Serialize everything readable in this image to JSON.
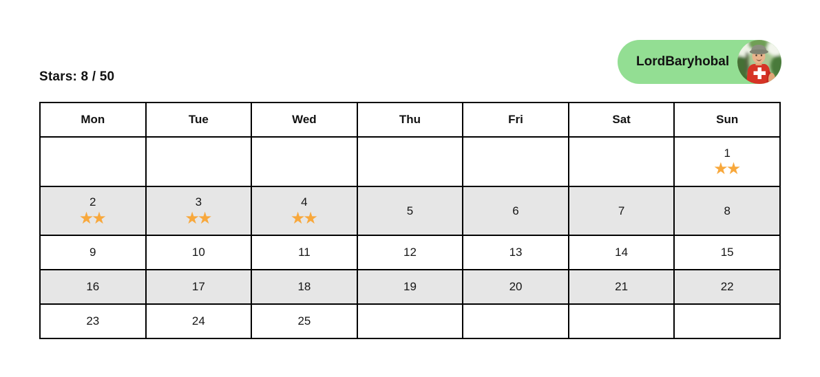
{
  "header": {
    "stars_label": "Stars: 8 / 50",
    "user": {
      "name": "LordBaryhobal",
      "avatar_icon": "child-photo-avatar"
    }
  },
  "colors": {
    "pill_green": "#93DE93",
    "star_orange": "#F8A83C",
    "alt_row_gray": "#E6E6E6",
    "border_black": "#000000",
    "shirt_red": "#D63426"
  },
  "calendar": {
    "day_headers": [
      "Mon",
      "Tue",
      "Wed",
      "Thu",
      "Fri",
      "Sat",
      "Sun"
    ],
    "star_glyph": "★",
    "rows": [
      [
        {
          "day": "",
          "stars": 0
        },
        {
          "day": "",
          "stars": 0
        },
        {
          "day": "",
          "stars": 0
        },
        {
          "day": "",
          "stars": 0
        },
        {
          "day": "",
          "stars": 0
        },
        {
          "day": "",
          "stars": 0
        },
        {
          "day": "1",
          "stars": 2
        }
      ],
      [
        {
          "day": "2",
          "stars": 2
        },
        {
          "day": "3",
          "stars": 2
        },
        {
          "day": "4",
          "stars": 2
        },
        {
          "day": "5",
          "stars": 0
        },
        {
          "day": "6",
          "stars": 0
        },
        {
          "day": "7",
          "stars": 0
        },
        {
          "day": "8",
          "stars": 0
        }
      ],
      [
        {
          "day": "9",
          "stars": 0
        },
        {
          "day": "10",
          "stars": 0
        },
        {
          "day": "11",
          "stars": 0
        },
        {
          "day": "12",
          "stars": 0
        },
        {
          "day": "13",
          "stars": 0
        },
        {
          "day": "14",
          "stars": 0
        },
        {
          "day": "15",
          "stars": 0
        }
      ],
      [
        {
          "day": "16",
          "stars": 0
        },
        {
          "day": "17",
          "stars": 0
        },
        {
          "day": "18",
          "stars": 0
        },
        {
          "day": "19",
          "stars": 0
        },
        {
          "day": "20",
          "stars": 0
        },
        {
          "day": "21",
          "stars": 0
        },
        {
          "day": "22",
          "stars": 0
        }
      ],
      [
        {
          "day": "23",
          "stars": 0
        },
        {
          "day": "24",
          "stars": 0
        },
        {
          "day": "25",
          "stars": 0
        },
        {
          "day": "",
          "stars": 0
        },
        {
          "day": "",
          "stars": 0
        },
        {
          "day": "",
          "stars": 0
        },
        {
          "day": "",
          "stars": 0
        }
      ]
    ]
  }
}
